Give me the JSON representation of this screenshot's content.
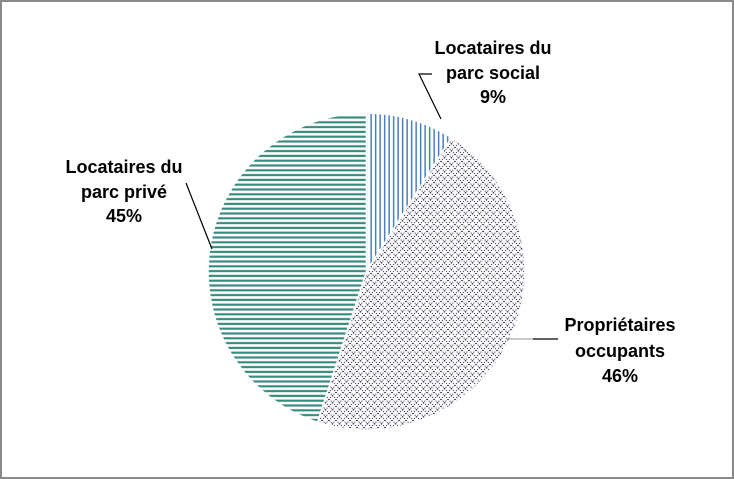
{
  "frame": {
    "background": "#FFFFFF",
    "border_color": "#8A8A8A"
  },
  "chart_data": {
    "type": "pie",
    "start_angle_deg": 0,
    "direction": "clockwise",
    "legend": "none",
    "label_style": "outside-with-leader-lines",
    "unit": "%",
    "slices": [
      {
        "name": "Locataires du parc social",
        "value": 9,
        "pct_label": "9%",
        "label_lines": [
          "Locataires du",
          "parc social"
        ],
        "color": "#4A80BE",
        "pattern": "vertical-lines"
      },
      {
        "name": "Propriétaires occupants",
        "value": 46,
        "pct_label": "46%",
        "label_lines": [
          "Propriétaires",
          "occupants"
        ],
        "color": "#443558",
        "pattern": "diagonal-crosshatch"
      },
      {
        "name": "Locataires du parc privé",
        "value": 45,
        "pct_label": "45%",
        "label_lines": [
          "Locataires du",
          "parc privé"
        ],
        "color": "#3B8C7E",
        "pattern": "horizontal-lines"
      }
    ]
  }
}
